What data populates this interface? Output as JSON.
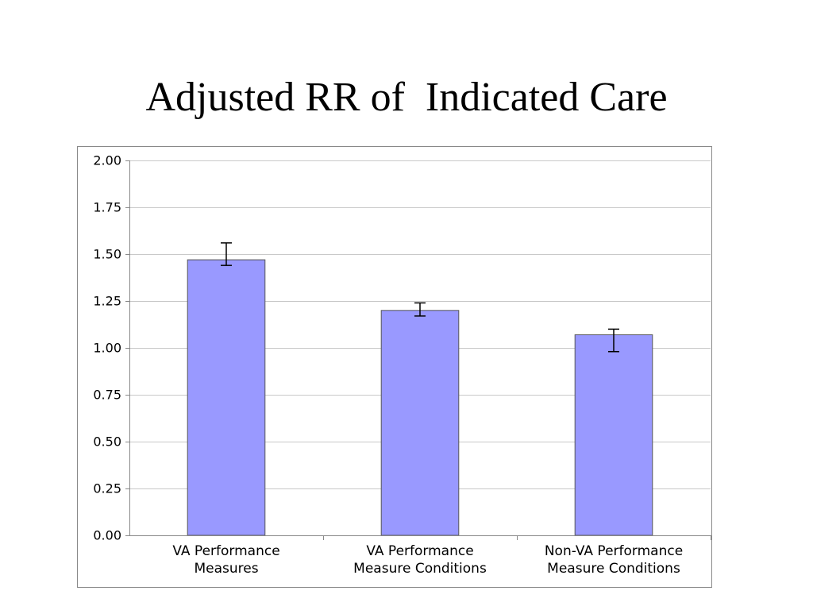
{
  "title": "Adjusted RR of  Indicated Care",
  "chart_data": {
    "type": "bar",
    "categories": [
      [
        "VA Performance",
        "Measures"
      ],
      [
        "VA Performance",
        "Measure Conditions"
      ],
      [
        "Non-VA Performance",
        "Measure Conditions"
      ]
    ],
    "series": [
      {
        "values": [
          1.47,
          1.2,
          1.07
        ],
        "error_low": [
          1.44,
          1.17,
          0.98
        ],
        "error_high": [
          1.56,
          1.24,
          1.1
        ]
      }
    ],
    "ylim": [
      0,
      2
    ],
    "yticks": [
      "0.00",
      "0.25",
      "0.50",
      "0.75",
      "1.00",
      "1.25",
      "1.50",
      "1.75",
      "2.00"
    ],
    "ytick_values": [
      0,
      0.25,
      0.5,
      0.75,
      1.0,
      1.25,
      1.5,
      1.75,
      2.0
    ],
    "grid": true,
    "legend": "none",
    "colors": {
      "bar_fill": "#9999ff",
      "bar_stroke": "#555555",
      "grid": "#c8c8c8",
      "frame": "#888888",
      "axis": "#888888",
      "error_bar": "#000000",
      "text": "#000000"
    }
  }
}
